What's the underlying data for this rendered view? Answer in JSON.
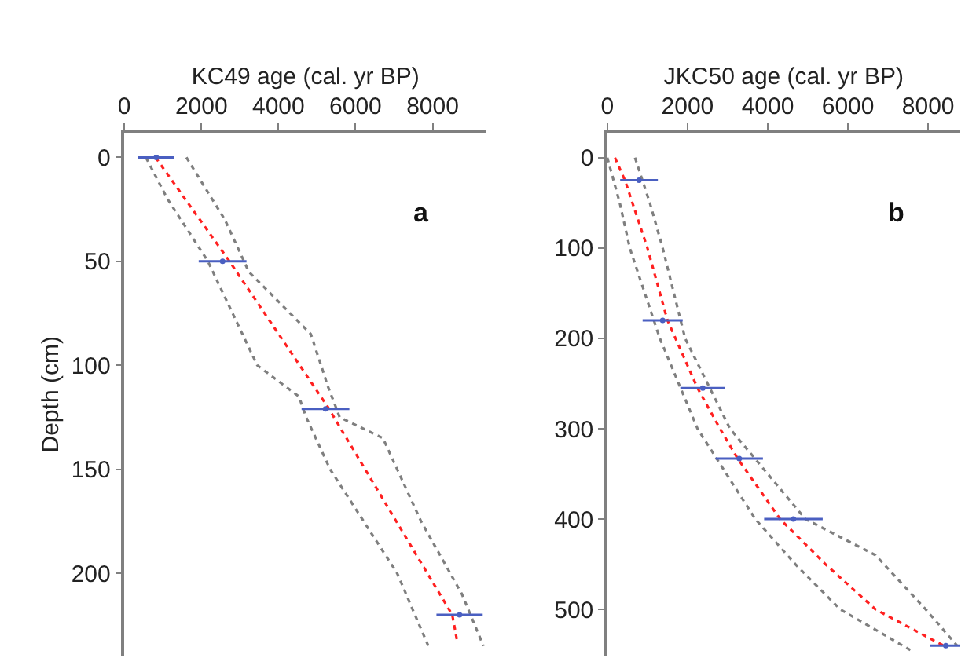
{
  "chart_data": [
    {
      "type": "line",
      "xlabel": "KC49 age (cal. yr BP)",
      "ylabel": "Depth (cm)",
      "annotations": [
        "a"
      ],
      "xlim": [
        0,
        9400
      ],
      "xticks": [
        0,
        2000,
        4000,
        6000,
        8000
      ],
      "ylim": [
        240,
        -12
      ],
      "yticks": [
        0,
        50,
        100,
        150,
        200
      ],
      "series": [
        {
          "line_style": "dotted",
          "color": "#7f7f7f",
          "x": [
            560,
            1120,
            2170,
            3450,
            4530,
            4720,
            5340,
            7080,
            7890
          ],
          "values": [
            0,
            20,
            50,
            100,
            115,
            125,
            150,
            200,
            235
          ]
        },
        {
          "line_style": "dotted",
          "color": "#7f7f7f",
          "x": [
            1610,
            2610,
            3230,
            4840,
            5280,
            5590,
            6710,
            7700,
            8760,
            9320
          ],
          "values": [
            0,
            30,
            55,
            85,
            110,
            125,
            135,
            175,
            210,
            235
          ]
        },
        {
          "line_style": "dotted",
          "color": "#ff2020",
          "x": [
            810,
            2730,
            5280,
            8510,
            8630
          ],
          "values": [
            0,
            50,
            120,
            220,
            232
          ]
        },
        {
          "type": "scatter",
          "marker": "circle",
          "color": "#4a5fc1",
          "x": [
            830,
            2550,
            5220,
            8700
          ],
          "values": [
            0,
            50,
            121,
            220
          ],
          "xerrors": [
            470,
            620,
            620,
            600
          ]
        }
      ]
    },
    {
      "type": "line",
      "xlabel": "JKC50 age (cal. yr BP)",
      "annotations": [
        "b"
      ],
      "xlim": [
        0,
        8800
      ],
      "xticks": [
        0,
        2000,
        4000,
        6000,
        8000
      ],
      "ylim": [
        552,
        -28
      ],
      "yticks": [
        0,
        100,
        200,
        300,
        400,
        500
      ],
      "series": [
        {
          "line_style": "dotted",
          "color": "#7f7f7f",
          "x": [
            0,
            310,
            560,
            1310,
            2250,
            3690,
            4690,
            5810,
            7560
          ],
          "values": [
            0,
            50,
            100,
            200,
            300,
            400,
            450,
            500,
            545
          ]
        },
        {
          "line_style": "dotted",
          "color": "#7f7f7f",
          "x": [
            690,
            1060,
            1380,
            1940,
            3060,
            4940,
            6690,
            7940,
            8720
          ],
          "values": [
            0,
            50,
            100,
            200,
            300,
            400,
            440,
            500,
            540
          ]
        },
        {
          "line_style": "dotted",
          "color": "#ff2020",
          "x": [
            190,
            440,
            1000,
            1500,
            2250,
            2810,
            3250,
            4310,
            5440,
            6690,
            8380
          ],
          "values": [
            0,
            25,
            100,
            180,
            255,
            300,
            333,
            400,
            450,
            500,
            540
          ]
        },
        {
          "type": "scatter",
          "marker": "circle",
          "color": "#4a5fc1",
          "x": [
            790,
            1380,
            2380,
            3290,
            4640,
            8440
          ],
          "values": [
            25,
            180,
            255,
            333,
            400,
            540
          ],
          "xerrors": [
            470,
            500,
            560,
            590,
            730,
            400
          ]
        }
      ]
    }
  ]
}
